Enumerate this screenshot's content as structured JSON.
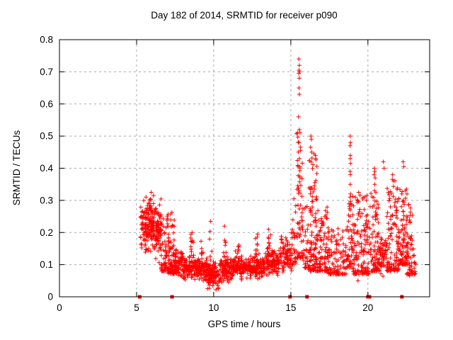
{
  "window": {
    "background": "#ffffff"
  },
  "chart_data": {
    "type": "scatter",
    "title": "Day 182 of 2014, SRMTID for receiver p090",
    "xlabel": "GPS time / hours",
    "ylabel": "SRMTID / TECUs",
    "xlim": [
      0,
      24
    ],
    "ylim": [
      0,
      0.8
    ],
    "xticks": [
      0,
      5,
      10,
      15,
      20
    ],
    "xtick_labels": [
      "0",
      "5",
      "10",
      "15",
      "20"
    ],
    "yticks": [
      0,
      0.1,
      0.2,
      0.3,
      0.4,
      0.5,
      0.6,
      0.7,
      0.8
    ],
    "ytick_labels": [
      "0",
      "0.1",
      "0.2",
      "0.3",
      "0.4",
      "0.5",
      "0.6",
      "0.7",
      "0.8"
    ],
    "grid": true,
    "legend": "none",
    "marker": "plus",
    "marker_color": "#ff0000",
    "grid_color": "#a8a8a8",
    "axis_color": "#000000",
    "seed": 42,
    "series_name": "SRMTID",
    "data_start_hour": 5.25,
    "data_end_hour": 23.1,
    "peak_points": [
      [
        15.52,
        0.74
      ],
      [
        15.55,
        0.72
      ],
      [
        15.53,
        0.705
      ],
      [
        15.56,
        0.7
      ],
      [
        15.52,
        0.695
      ],
      [
        15.55,
        0.68
      ],
      [
        15.53,
        0.65
      ],
      [
        15.55,
        0.63
      ],
      [
        15.5,
        0.56
      ],
      [
        15.55,
        0.52
      ],
      [
        15.6,
        0.51
      ],
      [
        15.52,
        0.48
      ],
      [
        16.3,
        0.5
      ],
      [
        16.33,
        0.49
      ],
      [
        16.28,
        0.465
      ],
      [
        16.35,
        0.45
      ],
      [
        16.5,
        0.445
      ],
      [
        16.6,
        0.44
      ],
      [
        16.62,
        0.43
      ],
      [
        18.85,
        0.5
      ],
      [
        18.87,
        0.48
      ],
      [
        18.84,
        0.47
      ],
      [
        18.86,
        0.44
      ],
      [
        18.85,
        0.43
      ],
      [
        18.87,
        0.415
      ],
      [
        18.84,
        0.39
      ],
      [
        18.86,
        0.38
      ],
      [
        18.85,
        0.35
      ],
      [
        18.87,
        0.32
      ],
      [
        18.84,
        0.31
      ],
      [
        18.86,
        0.29
      ],
      [
        18.85,
        0.27
      ],
      [
        18.84,
        0.25
      ],
      [
        20.42,
        0.4
      ],
      [
        20.45,
        0.39
      ],
      [
        20.4,
        0.38
      ],
      [
        20.47,
        0.37
      ],
      [
        20.44,
        0.35
      ],
      [
        20.43,
        0.33
      ],
      [
        21.0,
        0.42
      ],
      [
        21.05,
        0.4
      ],
      [
        21.6,
        0.38
      ],
      [
        21.65,
        0.36
      ],
      [
        22.28,
        0.42
      ],
      [
        22.32,
        0.405
      ],
      [
        22.3,
        0.3
      ],
      [
        22.33,
        0.295
      ],
      [
        15.2,
        0.305
      ],
      [
        5.95,
        0.325
      ],
      [
        6.1,
        0.315
      ],
      [
        19.4,
        0.325
      ],
      [
        19.9,
        0.3
      ],
      [
        9.8,
        0.235
      ],
      [
        10.7,
        0.22
      ],
      [
        12.85,
        0.195
      ],
      [
        8.6,
        0.2
      ],
      [
        13.55,
        0.21
      ],
      [
        10.15,
        0.022
      ],
      [
        10.3,
        0.028
      ],
      [
        19.35,
        0.05
      ],
      [
        22.7,
        0.065
      ]
    ],
    "density_bands": [
      {
        "x0": 5.25,
        "x1": 5.55,
        "y0": 0.13,
        "y1": 0.31,
        "n": 30,
        "bias": "mid"
      },
      {
        "x0": 5.5,
        "x1": 6.05,
        "y0": 0.13,
        "y1": 0.32,
        "n": 100,
        "bias": "mid"
      },
      {
        "x0": 6.0,
        "x1": 6.6,
        "y0": 0.1,
        "y1": 0.31,
        "n": 95,
        "bias": "mid"
      },
      {
        "x0": 6.55,
        "x1": 7.1,
        "y0": 0.08,
        "y1": 0.26,
        "n": 80,
        "bias": "low"
      },
      {
        "x0": 7.05,
        "x1": 7.45,
        "y0": 0.07,
        "y1": 0.27,
        "n": 55,
        "bias": "low"
      },
      {
        "x0": 7.4,
        "x1": 8.0,
        "y0": 0.05,
        "y1": 0.15,
        "n": 75,
        "bias": "mid"
      },
      {
        "x0": 8.0,
        "x1": 9.0,
        "y0": 0.05,
        "y1": 0.13,
        "n": 120,
        "bias": "mid"
      },
      {
        "x0": 8.5,
        "x1": 8.75,
        "y0": 0.12,
        "y1": 0.2,
        "n": 12,
        "bias": "uniform"
      },
      {
        "x0": 9.0,
        "x1": 9.6,
        "y0": 0.04,
        "y1": 0.13,
        "n": 70,
        "bias": "mid"
      },
      {
        "x0": 9.15,
        "x1": 9.4,
        "y0": 0.1,
        "y1": 0.175,
        "n": 10,
        "bias": "uniform"
      },
      {
        "x0": 9.7,
        "x1": 9.95,
        "y0": 0.08,
        "y1": 0.23,
        "n": 14,
        "bias": "low"
      },
      {
        "x0": 9.6,
        "x1": 10.4,
        "y0": 0.02,
        "y1": 0.11,
        "n": 95,
        "bias": "mid"
      },
      {
        "x0": 10.4,
        "x1": 10.95,
        "y0": 0.04,
        "y1": 0.13,
        "n": 70,
        "bias": "mid"
      },
      {
        "x0": 10.6,
        "x1": 10.8,
        "y0": 0.1,
        "y1": 0.21,
        "n": 14,
        "bias": "low"
      },
      {
        "x0": 10.95,
        "x1": 12.0,
        "y0": 0.05,
        "y1": 0.13,
        "n": 130,
        "bias": "mid"
      },
      {
        "x0": 11.4,
        "x1": 11.65,
        "y0": 0.1,
        "y1": 0.17,
        "n": 10,
        "bias": "uniform"
      },
      {
        "x0": 12.0,
        "x1": 13.2,
        "y0": 0.05,
        "y1": 0.13,
        "n": 140,
        "bias": "mid"
      },
      {
        "x0": 12.7,
        "x1": 12.95,
        "y0": 0.1,
        "y1": 0.19,
        "n": 12,
        "bias": "uniform"
      },
      {
        "x0": 13.2,
        "x1": 14.3,
        "y0": 0.06,
        "y1": 0.15,
        "n": 120,
        "bias": "mid"
      },
      {
        "x0": 13.45,
        "x1": 13.7,
        "y0": 0.12,
        "y1": 0.2,
        "n": 10,
        "bias": "uniform"
      },
      {
        "x0": 14.3,
        "x1": 15.1,
        "y0": 0.06,
        "y1": 0.2,
        "n": 85,
        "bias": "mid"
      },
      {
        "x0": 15.1,
        "x1": 15.35,
        "y0": 0.1,
        "y1": 0.3,
        "n": 22,
        "bias": "low"
      },
      {
        "x0": 15.35,
        "x1": 15.75,
        "y0": 0.12,
        "y1": 0.52,
        "n": 50,
        "bias": "low"
      },
      {
        "x0": 15.45,
        "x1": 15.65,
        "y0": 0.3,
        "y1": 0.5,
        "n": 12,
        "bias": "uniform"
      },
      {
        "x0": 15.75,
        "x1": 16.15,
        "y0": 0.09,
        "y1": 0.3,
        "n": 40,
        "bias": "low"
      },
      {
        "x0": 16.15,
        "x1": 16.7,
        "y0": 0.08,
        "y1": 0.44,
        "n": 110,
        "bias": "low"
      },
      {
        "x0": 16.7,
        "x1": 17.4,
        "y0": 0.08,
        "y1": 0.28,
        "n": 85,
        "bias": "low"
      },
      {
        "x0": 17.4,
        "x1": 18.6,
        "y0": 0.07,
        "y1": 0.22,
        "n": 110,
        "bias": "low"
      },
      {
        "x0": 18.6,
        "x1": 19.0,
        "y0": 0.09,
        "y1": 0.3,
        "n": 45,
        "bias": "low"
      },
      {
        "x0": 19.0,
        "x1": 20.05,
        "y0": 0.07,
        "y1": 0.32,
        "n": 140,
        "bias": "low"
      },
      {
        "x0": 20.1,
        "x1": 20.7,
        "y0": 0.08,
        "y1": 0.33,
        "n": 85,
        "bias": "low"
      },
      {
        "x0": 20.7,
        "x1": 21.2,
        "y0": 0.06,
        "y1": 0.2,
        "n": 55,
        "bias": "mid"
      },
      {
        "x0": 21.2,
        "x1": 22.0,
        "y0": 0.08,
        "y1": 0.38,
        "n": 110,
        "bias": "low"
      },
      {
        "x0": 22.0,
        "x1": 22.55,
        "y0": 0.1,
        "y1": 0.35,
        "n": 90,
        "bias": "low"
      },
      {
        "x0": 22.5,
        "x1": 23.1,
        "y0": 0.07,
        "y1": 0.29,
        "n": 65,
        "bias": "low"
      }
    ],
    "zero_marker_xs": [
      5.2,
      7.3,
      14.95,
      16.05,
      20.0,
      20.1,
      22.2
    ],
    "zero_marker_shape": "filled-square"
  }
}
